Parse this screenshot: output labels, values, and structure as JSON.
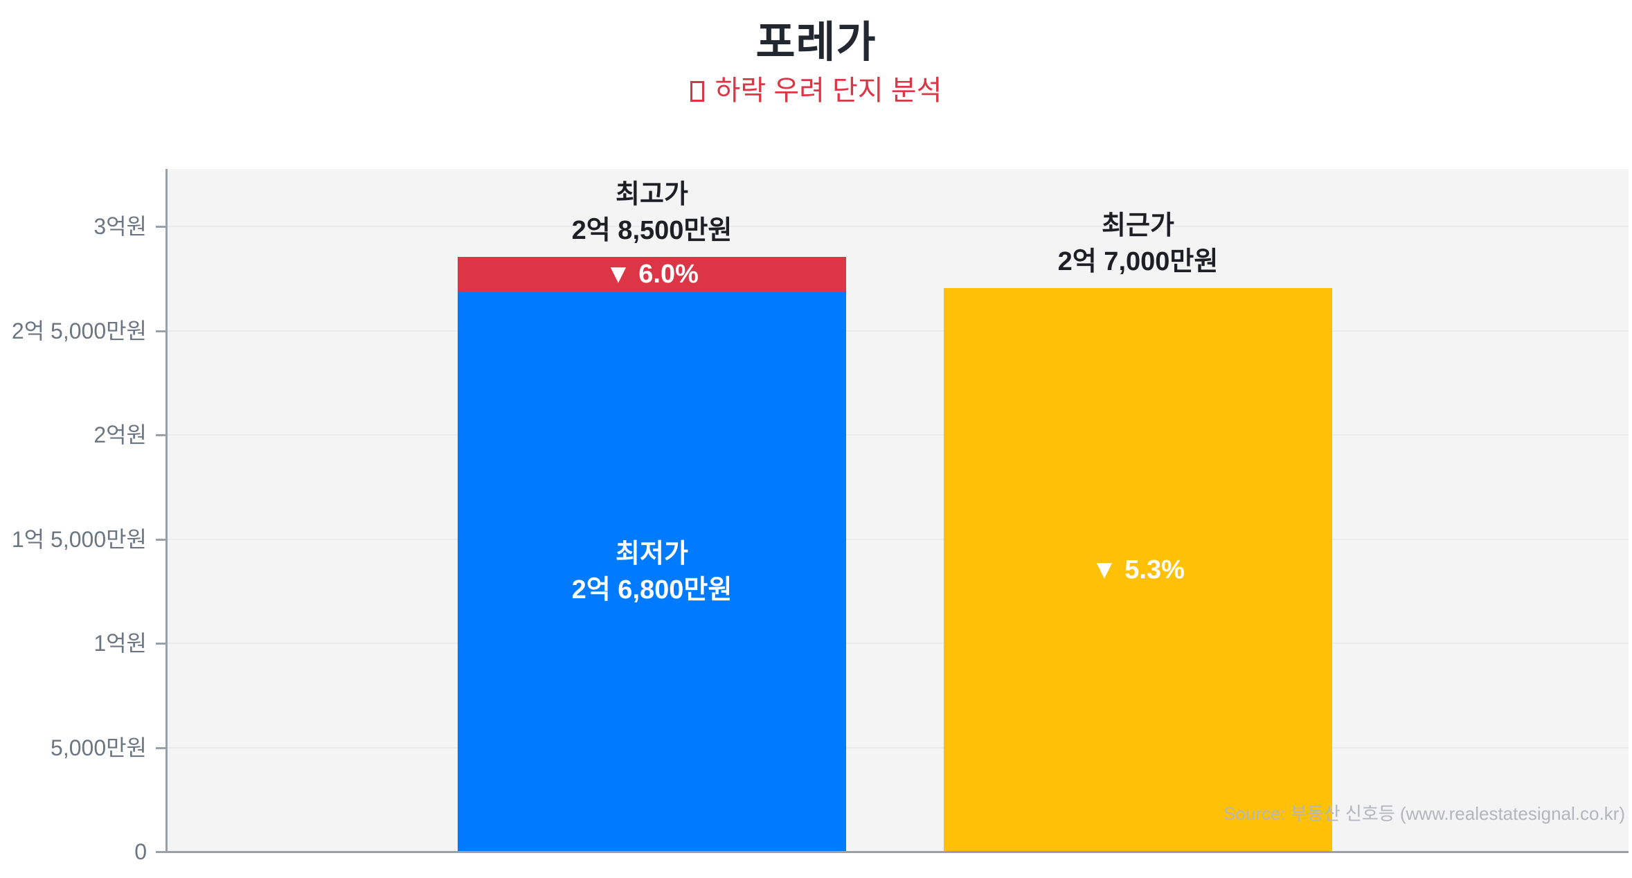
{
  "header": {
    "title": "포레가",
    "subtitle": "하락 우려 단지 분석"
  },
  "chart_data": {
    "type": "bar",
    "title": "포레가",
    "subtitle": "하락 우려 단지 분석",
    "unit": "만원",
    "ylim_manwon": [
      0,
      32800
    ],
    "grid": true,
    "y_ticks": [
      "3억원",
      "2억 5,000만원",
      "2억원",
      "1억 5,000만원",
      "1억원",
      "5,000만원",
      "0"
    ],
    "y_tick_values_manwon": [
      30000,
      25000,
      20000,
      15000,
      10000,
      5000,
      0
    ],
    "bars": [
      {
        "category": "최고가/최저가",
        "top_label_line1": "최고가",
        "top_label_line2": "2억 8,500만원",
        "high_value_manwon": 28500,
        "low_value_manwon": 26800,
        "drop_pct_label": "▼ 6.0%",
        "inner_label_line1": "최저가",
        "inner_label_line2": "2억 6,800만원",
        "bar_color": "#007bff",
        "cap_color": "#dc3545"
      },
      {
        "category": "최근가",
        "top_label_line1": "최근가",
        "top_label_line2": "2억 7,000만원",
        "value_manwon": 27000,
        "drop_pct_label": "▼ 5.3%",
        "bar_color": "#ffc107"
      }
    ],
    "source": "Source: 부동산 신호등 (www.realestatesignal.co.kr)"
  },
  "colors": {
    "title_text": "#23272f",
    "subtitle_red": "#dc3545",
    "bar_blue": "#007bff",
    "bar_yellow": "#ffc107",
    "drop_cap_red": "#dc3545",
    "plot_background": "#f4f4f5",
    "gridline": "#ebebed",
    "axis": "#9aa0a8",
    "axis_label": "#6c7682",
    "source_text": "#b3b6bb"
  }
}
